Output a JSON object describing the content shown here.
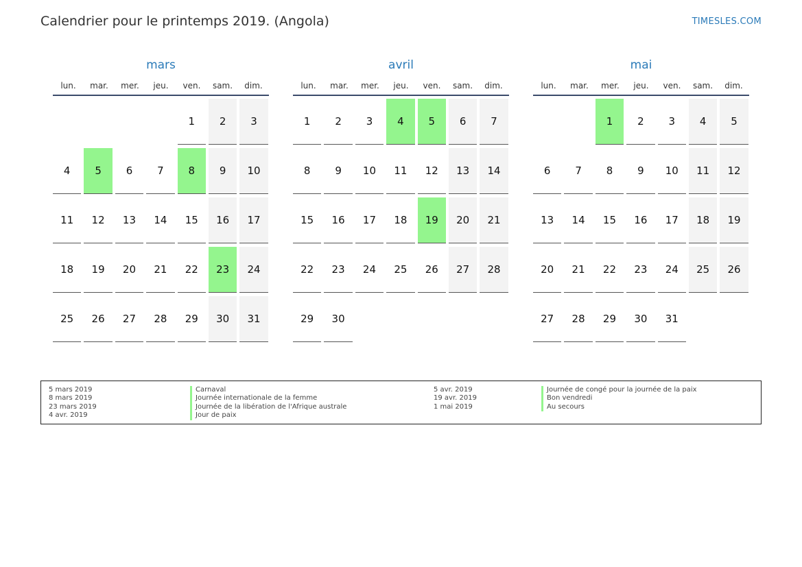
{
  "header": {
    "title": "Calendrier pour le printemps 2019. (Angola)",
    "brand": "TIMESLES.COM"
  },
  "weekdays": [
    "lun.",
    "mar.",
    "mer.",
    "jeu.",
    "ven.",
    "sam.",
    "dim."
  ],
  "colors": {
    "accent": "#2a7ab8",
    "holiday": "#94f58e",
    "weekend": "#f3f3f3"
  },
  "months": [
    {
      "name": "mars",
      "offset": 4,
      "days": 31,
      "holidays": [
        5,
        8,
        23
      ]
    },
    {
      "name": "avril",
      "offset": 0,
      "days": 30,
      "holidays": [
        4,
        5,
        19
      ]
    },
    {
      "name": "mai",
      "offset": 2,
      "days": 31,
      "holidays": [
        1
      ]
    }
  ],
  "legend": {
    "left": [
      {
        "date": "5 mars 2019",
        "name": "Carnaval"
      },
      {
        "date": "8 mars 2019",
        "name": "Journée internationale de la femme"
      },
      {
        "date": "23 mars 2019",
        "name": "Journée de la libération de l'Afrique australe"
      },
      {
        "date": "4 avr. 2019",
        "name": "Jour de paix"
      }
    ],
    "right": [
      {
        "date": "5 avr. 2019",
        "name": "Journée de congé pour la journée de la paix"
      },
      {
        "date": "19 avr. 2019",
        "name": "Bon vendredi"
      },
      {
        "date": "1 mai 2019",
        "name": "Au secours"
      }
    ]
  }
}
